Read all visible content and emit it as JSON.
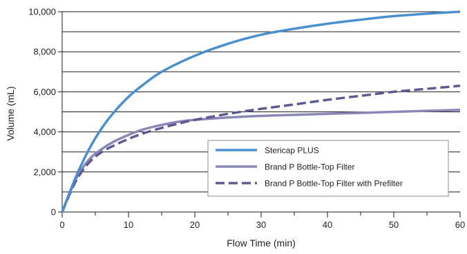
{
  "chart_data": {
    "type": "line",
    "xlabel": "Flow Time (min)",
    "ylabel": "Volume (mL)",
    "xlim": [
      0,
      60
    ],
    "ylim": [
      0,
      10000
    ],
    "x_ticks": [
      0,
      10,
      20,
      30,
      40,
      50,
      60
    ],
    "x_tick_labels": [
      "0",
      "10",
      "20",
      "30",
      "40",
      "50",
      "60"
    ],
    "y_ticks": [
      0,
      2000,
      4000,
      6000,
      8000,
      10000
    ],
    "y_tick_labels": [
      "0",
      "2,000",
      "4,000",
      "6,000",
      "8,000",
      "10,000"
    ],
    "horizontal_gridlines": [
      1000,
      2000,
      3000,
      4000,
      5000,
      6000,
      7000,
      8000,
      9000,
      10000
    ],
    "grid": true,
    "legend_position": "bottom-right",
    "series": [
      {
        "name": "Stericap PLUS",
        "color": "#4a8fd0",
        "style": "solid",
        "x": [
          0,
          2,
          4,
          6,
          8,
          10,
          12,
          15,
          20,
          25,
          30,
          35,
          40,
          45,
          50,
          55,
          60
        ],
        "y": [
          0,
          1700,
          3100,
          4200,
          5050,
          5750,
          6300,
          7000,
          7800,
          8400,
          8850,
          9150,
          9400,
          9600,
          9780,
          9900,
          10000
        ]
      },
      {
        "name": "Brand P Bottle-Top Filter",
        "color": "#8a86b8",
        "style": "solid",
        "x": [
          0,
          2,
          4,
          6,
          8,
          10,
          12,
          15,
          18,
          20,
          25,
          30,
          35,
          40,
          45,
          50,
          55,
          60
        ],
        "y": [
          0,
          1600,
          2600,
          3150,
          3550,
          3850,
          4100,
          4350,
          4530,
          4600,
          4720,
          4800,
          4850,
          4900,
          4950,
          5000,
          5050,
          5100
        ]
      },
      {
        "name": "Brand P Bottle-Top Filter with Prefilter",
        "color": "#5c5a91",
        "style": "dashed",
        "x": [
          0,
          2,
          4,
          6,
          8,
          10,
          12,
          15,
          18,
          20,
          25,
          30,
          35,
          40,
          45,
          50,
          55,
          60
        ],
        "y": [
          0,
          1500,
          2450,
          3000,
          3350,
          3650,
          3900,
          4200,
          4450,
          4600,
          4900,
          5150,
          5370,
          5600,
          5800,
          6000,
          6150,
          6300
        ]
      }
    ]
  }
}
